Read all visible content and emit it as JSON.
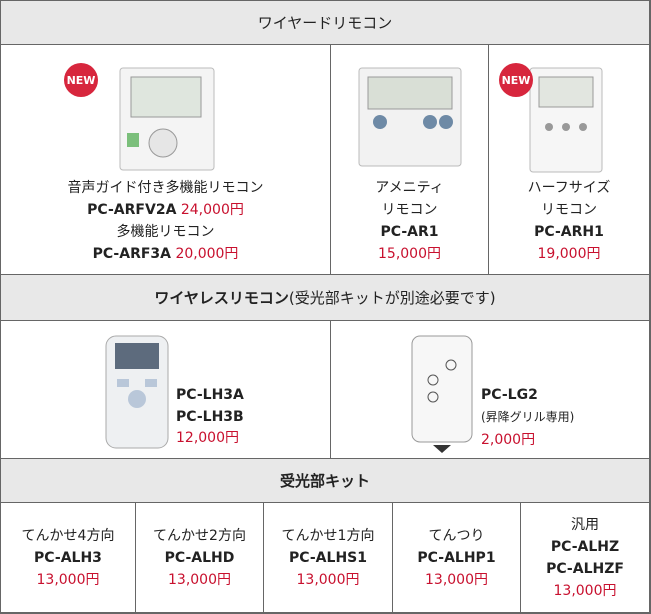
{
  "wired": {
    "title": "ワイヤードリモコン",
    "items": [
      {
        "badge": "NEW",
        "models": [
          {
            "name": "音声ガイド付き多機能リモコン",
            "model": "PC-ARFV2A",
            "price": "24,000円"
          },
          {
            "name": "多機能リモコン",
            "model": "PC-ARF3A",
            "price": "20,000円"
          }
        ]
      },
      {
        "name": [
          "アメニティ",
          "リモコン"
        ],
        "model": "PC-AR1",
        "price": "15,000円"
      },
      {
        "badge": "NEW",
        "name": [
          "ハーフサイズ",
          "リモコン"
        ],
        "model": "PC-ARH1",
        "price": "19,000円"
      }
    ]
  },
  "wireless": {
    "title": "ワイヤレスリモコン",
    "note": "(受光部キットが別途必要です)",
    "items": [
      {
        "models": [
          "PC-LH3A",
          "PC-LH3B"
        ],
        "price": "12,000円"
      },
      {
        "model": "PC-LG2",
        "note": "(昇降グリル専用)",
        "price": "2,000円"
      }
    ]
  },
  "receiver": {
    "title": "受光部キット",
    "items": [
      {
        "name": "てんかせ4方向",
        "models": [
          "PC-ALH3"
        ],
        "price": "13,000円"
      },
      {
        "name": "てんかせ2方向",
        "models": [
          "PC-ALHD"
        ],
        "price": "13,000円"
      },
      {
        "name": "てんかせ1方向",
        "models": [
          "PC-ALHS1"
        ],
        "price": "13,000円"
      },
      {
        "name": "てんつり",
        "models": [
          "PC-ALHP1"
        ],
        "price": "13,000円"
      },
      {
        "name": "汎用",
        "models": [
          "PC-ALHZ",
          "PC-ALHZF"
        ],
        "price": "13,000円"
      }
    ]
  }
}
